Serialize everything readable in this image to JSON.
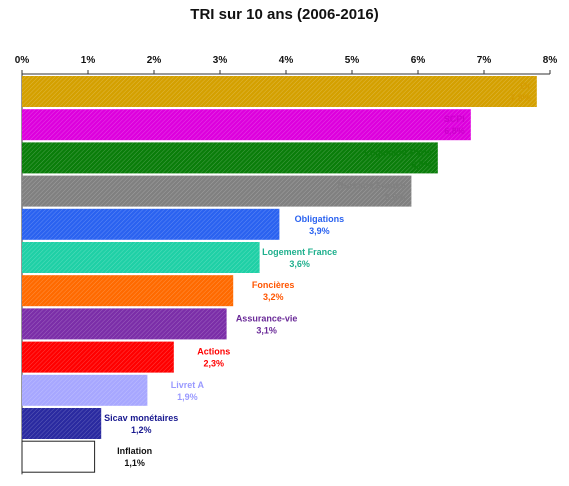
{
  "chart_data": {
    "type": "bar",
    "orientation": "horizontal",
    "title": "TRI sur 10 ans (2006-2016)",
    "xlim": [
      0,
      8
    ],
    "x_ticks": [
      "0%",
      "1%",
      "2%",
      "3%",
      "4%",
      "5%",
      "6%",
      "7%",
      "8%"
    ],
    "grid": false,
    "categories": [
      "Or",
      "SCPI",
      "Logement Paris",
      "Bureaux France",
      "Obligations",
      "Logement France",
      "Foncières",
      "Assurance-vie",
      "Actions",
      "Livret A",
      "Sicav monétaires",
      "Inflation"
    ],
    "values": [
      7.8,
      6.8,
      6.3,
      5.9,
      3.9,
      3.6,
      3.2,
      3.1,
      2.3,
      1.9,
      1.2,
      1.1
    ],
    "value_labels": [
      "7,8%",
      "6,8%",
      "6,3%",
      "5,9%",
      "3,9%",
      "3,6%",
      "3,2%",
      "3,1%",
      "2,3%",
      "1,9%",
      "1,2%",
      "1,1%"
    ],
    "bar_colors": [
      "#d4a000",
      "#dd00dd",
      "#0a7d0a",
      "#808080",
      "#2a62f0",
      "#1fd0a6",
      "#ff6a00",
      "#7b2ea8",
      "#ff0000",
      "#a7a7ff",
      "#2a2aa0",
      "#ffffff"
    ],
    "label_colors": [
      "#d49a00",
      "#cc00cc",
      "#0a7d0a",
      "#808080",
      "#2a62f0",
      "#1fb08e",
      "#ff5500",
      "#6a2a98",
      "#ff0000",
      "#9a9aff",
      "#1a1a90",
      "#111111"
    ]
  }
}
